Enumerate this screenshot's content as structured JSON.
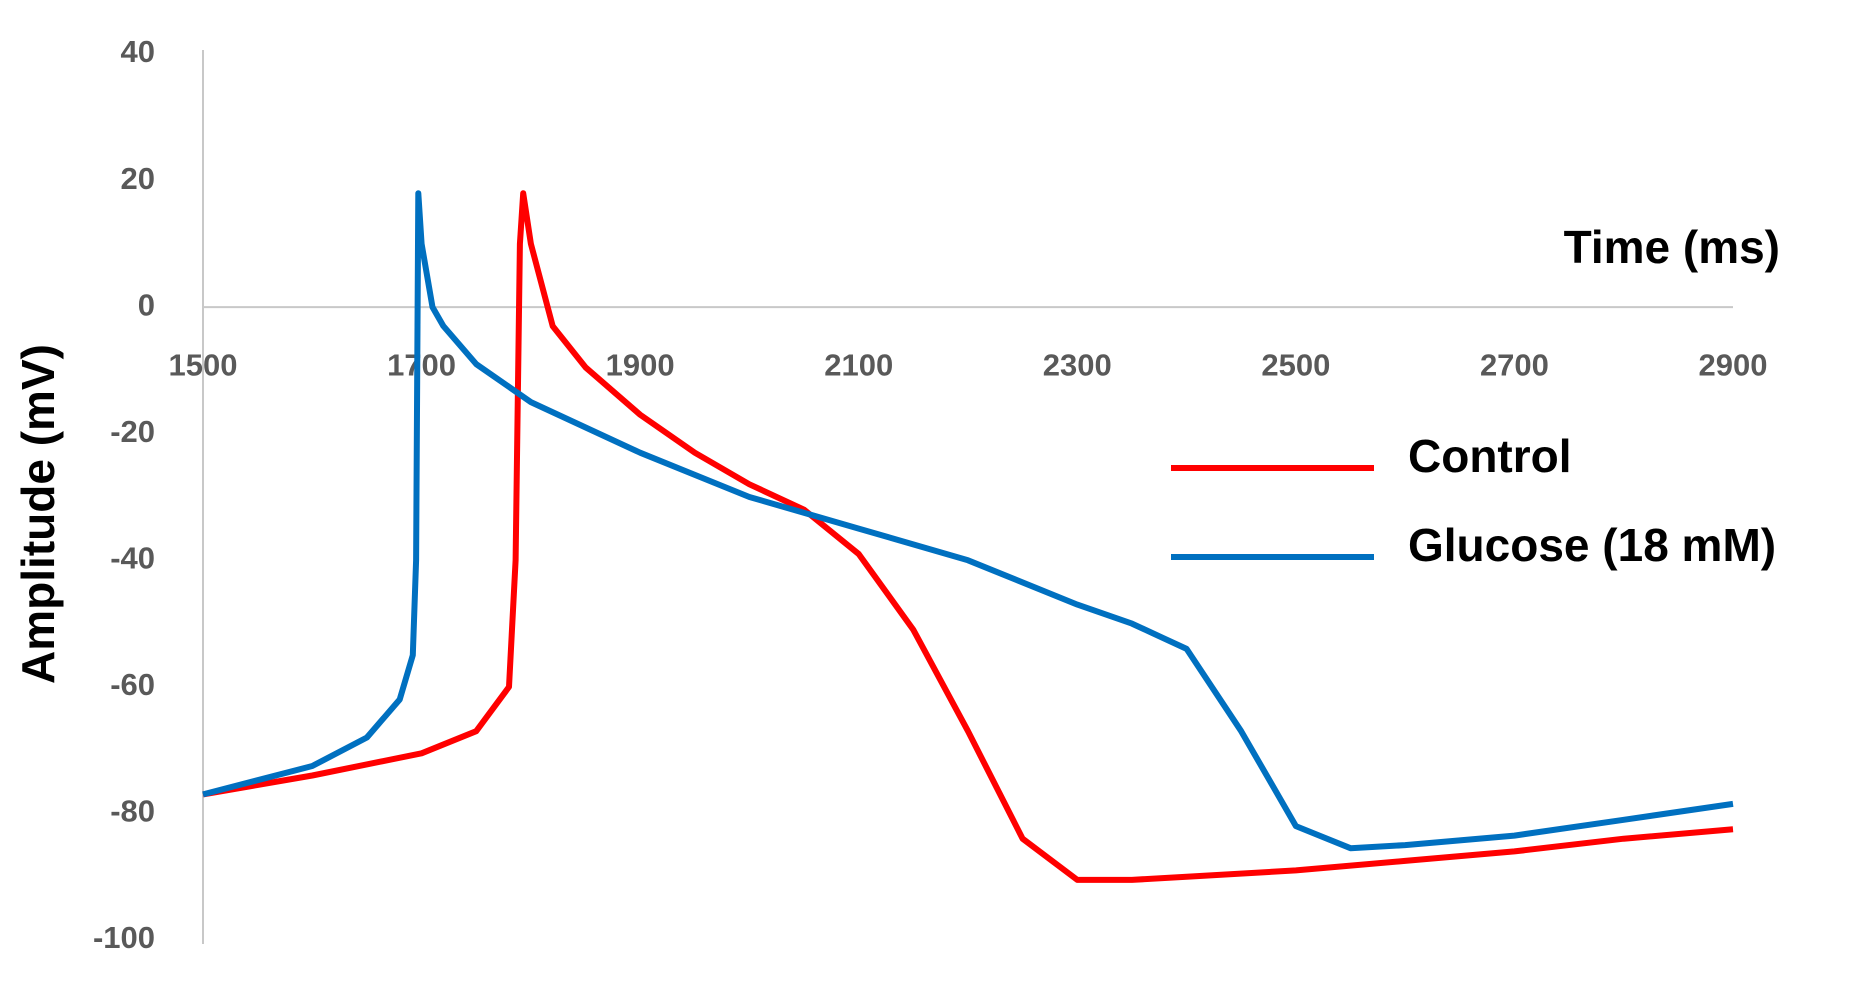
{
  "chart_data": {
    "type": "line",
    "x_label": "Time (ms)",
    "y_label": "Amplitude (mV)",
    "xlim": [
      1500,
      2900
    ],
    "xticks": [
      1500,
      1700,
      1900,
      2100,
      2300,
      2500,
      2700,
      2900
    ],
    "ylim": [
      -100,
      40
    ],
    "yticks": [
      -100,
      -80,
      -60,
      -40,
      -20,
      0,
      20,
      40
    ],
    "grid": false,
    "legend": "right",
    "series": [
      {
        "name": "Control",
        "color": "#ff0000",
        "x": [
          1500,
          1600,
          1700,
          1750,
          1780,
          1786,
          1790,
          1793,
          1800,
          1820,
          1850,
          1900,
          1950,
          2000,
          2050,
          2100,
          2150,
          2200,
          2250,
          2300,
          2350,
          2400,
          2500,
          2600,
          2700,
          2800,
          2900
        ],
        "values": [
          -77,
          -74,
          -70.5,
          -67,
          -60,
          -40,
          10,
          18,
          10,
          -3,
          -9.5,
          -17,
          -23,
          -28,
          -32,
          -39,
          -51,
          -67,
          -84,
          -90.5,
          -90.5,
          -90,
          -89,
          -87.5,
          -86,
          -84,
          -82.5
        ]
      },
      {
        "name": "Glucose (18 mM)",
        "color": "#0070c0",
        "x": [
          1500,
          1600,
          1650,
          1680,
          1692,
          1695,
          1697,
          1700,
          1710,
          1720,
          1750,
          1800,
          1900,
          2000,
          2100,
          2200,
          2300,
          2350,
          2400,
          2450,
          2500,
          2550,
          2600,
          2700,
          2800,
          2900
        ],
        "values": [
          -77,
          -72.5,
          -68,
          -62,
          -55,
          -40,
          18,
          10,
          0,
          -3,
          -9,
          -15,
          -23,
          -30,
          -35,
          -40,
          -47,
          -50,
          -54,
          -67,
          -82,
          -85.5,
          -85,
          -83.5,
          -81,
          -78.5
        ]
      }
    ]
  }
}
